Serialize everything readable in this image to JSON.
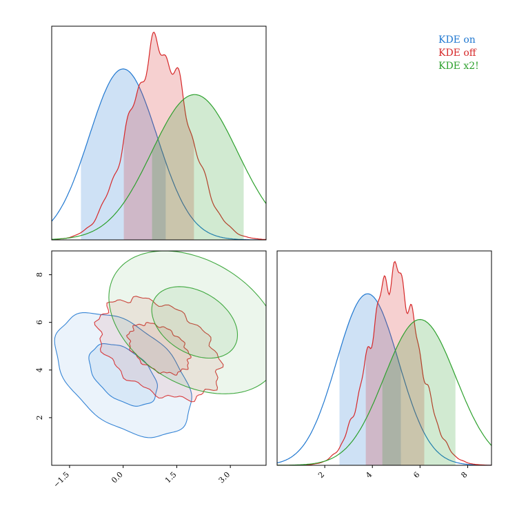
{
  "chart_data": {
    "type": "corner",
    "series": [
      {
        "name": "KDE on",
        "color": "#1f77d0",
        "fill": "#cfe0f5",
        "mean_x": 0.0,
        "sd_x": 0.95,
        "mean_y": 3.8,
        "sd_y": 1.3,
        "ci_x": [
          -1.2,
          1.2
        ],
        "ci_y": [
          2.6,
          5.2
        ]
      },
      {
        "name": "KDE off",
        "color": "#d62728",
        "fill": "#f7d2d2",
        "mean_x": 1.0,
        "sd_x": 0.85,
        "mean_y": 4.9,
        "sd_y": 1.05,
        "ci_x": [
          0.0,
          2.0
        ],
        "ci_y": [
          3.7,
          6.2
        ]
      },
      {
        "name": "KDE x2!",
        "color": "#2ca02c",
        "fill": "#d6ebd6",
        "mean_x": 2.0,
        "sd_x": 1.2,
        "mean_y": 6.0,
        "sd_y": 1.5,
        "ci_x": [
          0.8,
          3.4
        ],
        "ci_y": [
          4.4,
          7.5
        ]
      }
    ],
    "x_axis": {
      "range": [
        -2.0,
        4.0
      ],
      "ticks": [
        "−1.5",
        "0.0",
        "1.5",
        "3.0"
      ],
      "tick_values": [
        -1.5,
        0.0,
        1.5,
        3.0
      ]
    },
    "y_axis": {
      "range": [
        0.0,
        9.0
      ],
      "ticks": [
        "2",
        "4",
        "6",
        "8"
      ],
      "tick_values": [
        2,
        4,
        6,
        8
      ]
    },
    "y_marginal_axis": {
      "range": [
        0.0,
        9.0
      ],
      "ticks": [
        "2",
        "4",
        "6",
        "8"
      ],
      "tick_values": [
        2,
        4,
        6,
        8
      ]
    },
    "legend": {
      "placement": "top-right",
      "entries": [
        "KDE on",
        "KDE off",
        "KDE x2!"
      ]
    },
    "grid": false
  }
}
